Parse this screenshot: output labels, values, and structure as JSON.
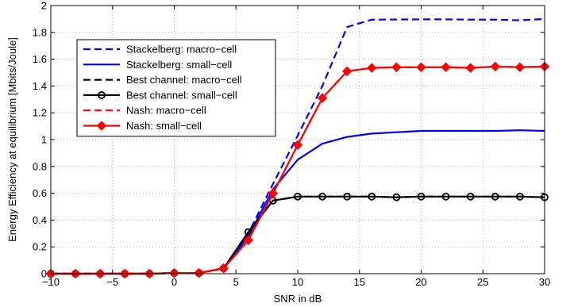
{
  "chart_data": {
    "type": "line",
    "title": "",
    "xlabel": "SNR in dB",
    "ylabel": "Energy Efficiency at equilibrium [Mbits/Joule]",
    "xlim": [
      -10,
      30
    ],
    "ylim": [
      0,
      2
    ],
    "xticks": [
      -10,
      -5,
      0,
      5,
      10,
      15,
      20,
      25,
      30
    ],
    "xtick_labels": [
      "−10",
      "−5",
      "0",
      "5",
      "10",
      "15",
      "20",
      "25",
      "30"
    ],
    "yticks": [
      0,
      0.2,
      0.4,
      0.6,
      0.8,
      1,
      1.2,
      1.4,
      1.6,
      1.8,
      2
    ],
    "ytick_labels": [
      "0",
      "0.2",
      "0.4",
      "0.6",
      "0.8",
      "1",
      "1.2",
      "1.4",
      "1.6",
      "1.8",
      "2"
    ],
    "grid": "dotted",
    "legend_position": "top-left",
    "x": [
      -10,
      -8,
      -6,
      -4,
      -2,
      0,
      2,
      4,
      6,
      8,
      10,
      12,
      14,
      16,
      18,
      20,
      22,
      24,
      26,
      28,
      30
    ],
    "series": [
      {
        "name": "Stackelberg: macro−cell",
        "color": "#0000ff",
        "dash": "dashed",
        "marker": "none",
        "values": [
          0,
          0,
          0,
          0,
          0,
          0.005,
          0.005,
          0.04,
          0.3,
          0.67,
          1.03,
          1.4,
          1.84,
          1.895,
          1.896,
          1.897,
          1.897,
          1.895,
          1.895,
          1.89,
          1.9
        ]
      },
      {
        "name": "Stackelberg: small−cell",
        "color": "#0000ff",
        "dash": "solid",
        "marker": "none",
        "values": [
          0,
          0,
          0,
          0,
          0,
          0.005,
          0.005,
          0.04,
          0.28,
          0.63,
          0.85,
          0.97,
          1.02,
          1.045,
          1.055,
          1.065,
          1.065,
          1.065,
          1.065,
          1.07,
          1.065
        ]
      },
      {
        "name": "Best channel: macro−cell",
        "color": "#000000",
        "dash": "dashed",
        "marker": "none",
        "values": [
          0,
          0,
          0,
          0,
          0,
          0.005,
          0.005,
          0.04,
          0.31,
          0.545,
          0.575,
          0.575,
          0.575,
          0.575,
          0.57,
          0.575,
          0.575,
          0.575,
          0.575,
          0.575,
          0.57
        ]
      },
      {
        "name": "Best channel: small−cell",
        "color": "#000000",
        "dash": "solid",
        "marker": "circle",
        "values": [
          0,
          0,
          0,
          0,
          0,
          0.005,
          0.005,
          0.04,
          0.31,
          0.545,
          0.575,
          0.575,
          0.575,
          0.575,
          0.57,
          0.575,
          0.575,
          0.575,
          0.575,
          0.575,
          0.57
        ]
      },
      {
        "name": "Nash: macro−cell",
        "color": "#ff0000",
        "dash": "dashed",
        "marker": "none",
        "values": [
          0,
          0,
          0,
          0,
          0,
          0.005,
          0.005,
          0.04,
          0.25,
          0.6,
          0.96,
          1.31,
          1.51,
          1.535,
          1.54,
          1.54,
          1.54,
          1.535,
          1.545,
          1.54,
          1.545
        ]
      },
      {
        "name": "Nash: small−cell",
        "color": "#ff0000",
        "dash": "solid",
        "marker": "diamond",
        "values": [
          0,
          0,
          0,
          0,
          0,
          0.005,
          0.005,
          0.04,
          0.25,
          0.6,
          0.96,
          1.31,
          1.51,
          1.535,
          1.54,
          1.54,
          1.54,
          1.535,
          1.545,
          1.54,
          1.545
        ]
      }
    ]
  }
}
